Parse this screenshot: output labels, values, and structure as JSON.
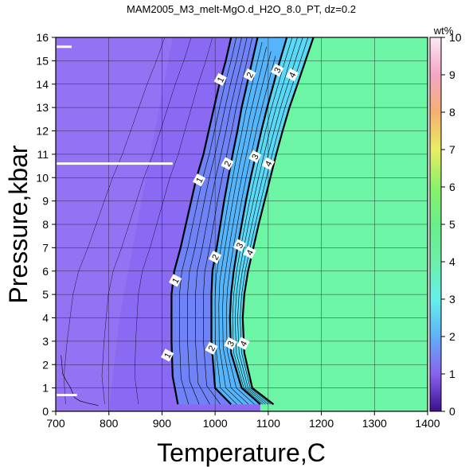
{
  "chart_data": {
    "type": "heatmap",
    "title": "MAM2005_M3_melt-MgO.d_H2O_8.0_PT, dz=0.2",
    "xlabel": "Temperature,C",
    "ylabel": "Pressure,kbar",
    "xlim": [
      700,
      1400
    ],
    "ylim": [
      0,
      16
    ],
    "x_ticks": [
      700,
      800,
      900,
      1000,
      1100,
      1200,
      1300,
      1400
    ],
    "y_ticks": [
      0,
      1,
      2,
      3,
      4,
      5,
      6,
      7,
      8,
      9,
      10,
      11,
      12,
      13,
      14,
      15,
      16
    ],
    "grid": true,
    "colorbar": {
      "label": "wt%",
      "range": [
        0,
        10
      ],
      "ticks": [
        0,
        1,
        2,
        3,
        4,
        5,
        6,
        7,
        8,
        9,
        10
      ],
      "stops": [
        {
          "v": 0,
          "c": "#3a0f8c"
        },
        {
          "v": 1,
          "c": "#8a62f0"
        },
        {
          "v": 2,
          "c": "#5fb0f8"
        },
        {
          "v": 3,
          "c": "#64f0ea"
        },
        {
          "v": 4,
          "c": "#6cf0a8"
        },
        {
          "v": 5,
          "c": "#68ee88"
        },
        {
          "v": 6,
          "c": "#8cf06a"
        },
        {
          "v": 7,
          "c": "#e8ee62"
        },
        {
          "v": 8,
          "c": "#f4b070"
        },
        {
          "v": 9,
          "c": "#f4a6c4"
        },
        {
          "v": 10,
          "c": "#fce8f4"
        }
      ]
    },
    "region_colors": {
      "low": "#8a6af2",
      "band1": "#6f82f6",
      "band2": "#56b4fa",
      "band3": "#5ad8f6",
      "high": "#6cf5a4",
      "near_zero": "#9a7af4"
    },
    "contours": [
      {
        "level": 1,
        "label": "1",
        "points": [
          [
            930,
            0.3
          ],
          [
            920,
            1.5
          ],
          [
            918,
            3
          ],
          [
            918,
            5
          ],
          [
            923,
            6
          ],
          [
            935,
            7
          ],
          [
            945,
            8
          ],
          [
            955,
            9
          ],
          [
            965,
            10
          ],
          [
            978,
            11
          ],
          [
            988,
            12
          ],
          [
            998,
            13
          ],
          [
            1008,
            14
          ],
          [
            1020,
            15
          ],
          [
            1030,
            16
          ]
        ]
      },
      {
        "level": 2,
        "label": "2",
        "points": [
          [
            1030,
            0.3
          ],
          [
            1000,
            1
          ],
          [
            993,
            3
          ],
          [
            993,
            5
          ],
          [
            995,
            6
          ],
          [
            1003,
            7
          ],
          [
            1010,
            8
          ],
          [
            1017,
            9
          ],
          [
            1025,
            10
          ],
          [
            1033,
            11
          ],
          [
            1042,
            12
          ],
          [
            1050,
            13
          ],
          [
            1060,
            14
          ],
          [
            1070,
            15
          ],
          [
            1080,
            16
          ]
        ]
      },
      {
        "level": 3,
        "label": "3",
        "points": [
          [
            1085,
            0.3
          ],
          [
            1050,
            1
          ],
          [
            1030,
            2.5
          ],
          [
            1028,
            4
          ],
          [
            1030,
            5
          ],
          [
            1035,
            6
          ],
          [
            1042,
            7
          ],
          [
            1050,
            8
          ],
          [
            1058,
            9
          ],
          [
            1067,
            10
          ],
          [
            1077,
            11
          ],
          [
            1087,
            12
          ],
          [
            1098,
            13
          ],
          [
            1110,
            14
          ],
          [
            1122,
            15
          ],
          [
            1135,
            16
          ]
        ]
      },
      {
        "level": 4,
        "label": "4",
        "points": [
          [
            1110,
            0.3
          ],
          [
            1070,
            1
          ],
          [
            1055,
            2.5
          ],
          [
            1052,
            4
          ],
          [
            1055,
            5
          ],
          [
            1062,
            6
          ],
          [
            1072,
            7
          ],
          [
            1082,
            8
          ],
          [
            1093,
            9
          ],
          [
            1104,
            10
          ],
          [
            1115,
            11
          ],
          [
            1127,
            12
          ],
          [
            1140,
            13
          ],
          [
            1155,
            14
          ],
          [
            1170,
            15
          ],
          [
            1185,
            16
          ]
        ]
      }
    ],
    "contour_labels": [
      {
        "label": "1",
        "x": 1010,
        "y": 14.2
      },
      {
        "label": "1",
        "x": 970,
        "y": 9.9
      },
      {
        "label": "1",
        "x": 925,
        "y": 5.6
      },
      {
        "label": "1",
        "x": 910,
        "y": 2.4
      },
      {
        "label": "2",
        "x": 1065,
        "y": 14.4
      },
      {
        "label": "2",
        "x": 1023,
        "y": 10.6
      },
      {
        "label": "2",
        "x": 1000,
        "y": 6.6
      },
      {
        "label": "2",
        "x": 993,
        "y": 2.7
      },
      {
        "label": "3",
        "x": 1117,
        "y": 14.6
      },
      {
        "label": "3",
        "x": 1075,
        "y": 10.9
      },
      {
        "label": "3",
        "x": 1046,
        "y": 7.1
      },
      {
        "label": "3",
        "x": 1029,
        "y": 2.9
      },
      {
        "label": "4",
        "x": 1145,
        "y": 14.4
      },
      {
        "label": "4",
        "x": 1100,
        "y": 10.6
      },
      {
        "label": "4",
        "x": 1065,
        "y": 6.8
      },
      {
        "label": "4",
        "x": 1053,
        "y": 2.9
      }
    ],
    "white_segments": [
      {
        "x": [
          702,
          920
        ],
        "y": 10.6
      },
      {
        "x": [
          702,
          740
        ],
        "y": 0.7
      },
      {
        "x": [
          702,
          730
        ],
        "y": 15.6
      }
    ]
  }
}
